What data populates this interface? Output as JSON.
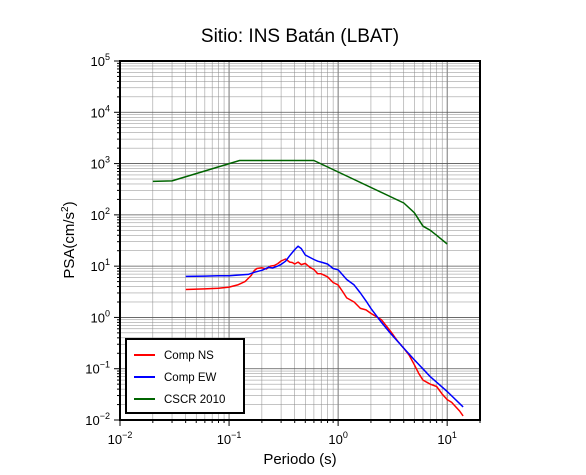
{
  "chart_data": {
    "type": "line",
    "title": "Sitio: INS Batán (LBAT)",
    "xlabel": "Periodo (s)",
    "ylabel_main": "PSA(cm/s",
    "ylabel_sup": "2",
    "ylabel_close": ")",
    "x_scale": "log",
    "y_scale": "log",
    "xlim": [
      0.01,
      20
    ],
    "ylim": [
      0.01,
      100000
    ],
    "grid": true,
    "legend_position": "bottom-left",
    "x_ticks": [
      {
        "value": 0.01,
        "base": "10",
        "exp": "−2"
      },
      {
        "value": 0.1,
        "base": "10",
        "exp": "−1"
      },
      {
        "value": 1,
        "base": "10",
        "exp": "0"
      },
      {
        "value": 10,
        "base": "10",
        "exp": "1"
      }
    ],
    "y_ticks": [
      {
        "value": 0.01,
        "base": "10",
        "exp": "−2"
      },
      {
        "value": 0.1,
        "base": "10",
        "exp": "−1"
      },
      {
        "value": 1,
        "base": "10",
        "exp": "0"
      },
      {
        "value": 10,
        "base": "10",
        "exp": "1"
      },
      {
        "value": 100,
        "base": "10",
        "exp": "2"
      },
      {
        "value": 1000,
        "base": "10",
        "exp": "3"
      },
      {
        "value": 10000,
        "base": "10",
        "exp": "4"
      },
      {
        "value": 100000,
        "base": "10",
        "exp": "5"
      }
    ],
    "series": [
      {
        "name": "Comp NS",
        "color": "#ff0000",
        "points": [
          [
            0.04,
            3.5
          ],
          [
            0.06,
            3.6
          ],
          [
            0.08,
            3.7
          ],
          [
            0.1,
            3.9
          ],
          [
            0.12,
            4.3
          ],
          [
            0.14,
            5.0
          ],
          [
            0.16,
            6.6
          ],
          [
            0.17,
            8.2
          ],
          [
            0.18,
            9.0
          ],
          [
            0.2,
            9.3
          ],
          [
            0.22,
            8.8
          ],
          [
            0.24,
            10.0
          ],
          [
            0.26,
            10.3
          ],
          [
            0.28,
            11.2
          ],
          [
            0.3,
            12.6
          ],
          [
            0.33,
            13.8
          ],
          [
            0.36,
            12.0
          ],
          [
            0.38,
            11.8
          ],
          [
            0.4,
            11.0
          ],
          [
            0.43,
            12.0
          ],
          [
            0.46,
            10.7
          ],
          [
            0.5,
            11.3
          ],
          [
            0.55,
            9.5
          ],
          [
            0.6,
            8.6
          ],
          [
            0.65,
            7.1
          ],
          [
            0.7,
            7.1
          ],
          [
            0.8,
            6.2
          ],
          [
            0.9,
            4.8
          ],
          [
            1.0,
            4.3
          ],
          [
            1.1,
            3.2
          ],
          [
            1.2,
            2.4
          ],
          [
            1.4,
            2.0
          ],
          [
            1.6,
            1.5
          ],
          [
            1.8,
            1.4
          ],
          [
            2.0,
            1.2
          ],
          [
            2.5,
            0.9
          ],
          [
            3.0,
            0.55
          ],
          [
            3.5,
            0.35
          ],
          [
            4.0,
            0.25
          ],
          [
            4.5,
            0.18
          ],
          [
            5.0,
            0.12
          ],
          [
            5.5,
            0.08
          ],
          [
            6.0,
            0.06
          ],
          [
            7.0,
            0.05
          ],
          [
            8.0,
            0.045
          ],
          [
            9.0,
            0.032
          ],
          [
            10.0,
            0.025
          ],
          [
            11.0,
            0.022
          ],
          [
            12.0,
            0.018
          ],
          [
            13.0,
            0.015
          ],
          [
            14.0,
            0.012
          ]
        ]
      },
      {
        "name": "Comp EW",
        "color": "#0000ff",
        "points": [
          [
            0.04,
            6.3
          ],
          [
            0.06,
            6.4
          ],
          [
            0.08,
            6.5
          ],
          [
            0.1,
            6.5
          ],
          [
            0.12,
            6.7
          ],
          [
            0.15,
            6.9
          ],
          [
            0.17,
            7.6
          ],
          [
            0.2,
            8.3
          ],
          [
            0.23,
            9.5
          ],
          [
            0.25,
            9.2
          ],
          [
            0.28,
            10.0
          ],
          [
            0.3,
            10.8
          ],
          [
            0.33,
            12.5
          ],
          [
            0.36,
            16.0
          ],
          [
            0.4,
            21.0
          ],
          [
            0.43,
            24.5
          ],
          [
            0.46,
            22.0
          ],
          [
            0.5,
            16.5
          ],
          [
            0.55,
            14.8
          ],
          [
            0.6,
            13.5
          ],
          [
            0.65,
            12.5
          ],
          [
            0.7,
            12.0
          ],
          [
            0.8,
            11.0
          ],
          [
            0.9,
            9.0
          ],
          [
            1.0,
            8.5
          ],
          [
            1.2,
            5.5
          ],
          [
            1.4,
            4.3
          ],
          [
            1.6,
            3.0
          ],
          [
            1.8,
            2.1
          ],
          [
            2.0,
            1.5
          ],
          [
            2.5,
            0.8
          ],
          [
            3.0,
            0.5
          ],
          [
            4.0,
            0.25
          ],
          [
            5.0,
            0.15
          ],
          [
            7.0,
            0.07
          ],
          [
            10.0,
            0.036
          ],
          [
            14.0,
            0.018
          ]
        ]
      },
      {
        "name": "CSCR 2010",
        "color": "#006400",
        "points": [
          [
            0.02,
            450
          ],
          [
            0.03,
            460
          ],
          [
            0.125,
            1150
          ],
          [
            0.6,
            1150
          ],
          [
            4.0,
            170
          ],
          [
            5.0,
            110
          ],
          [
            6.0,
            60
          ],
          [
            7.0,
            50
          ],
          [
            8.0,
            40
          ],
          [
            10.0,
            27
          ]
        ]
      }
    ]
  }
}
